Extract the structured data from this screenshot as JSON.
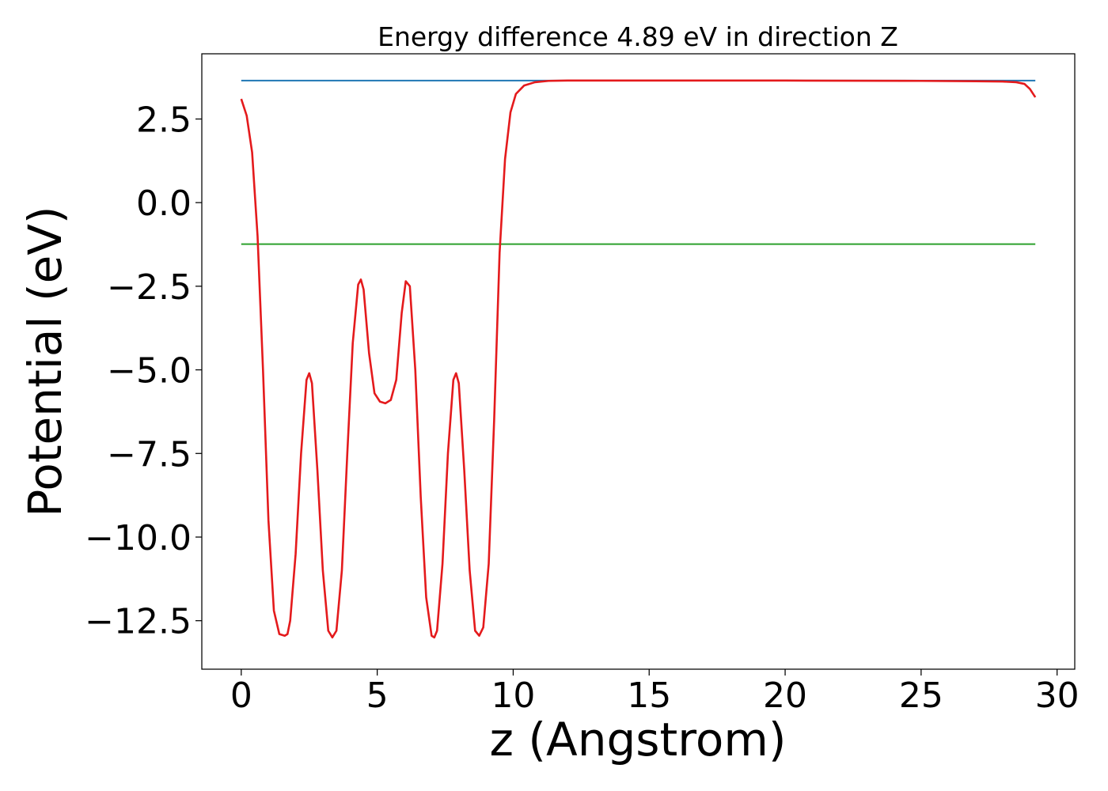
{
  "chart_data": {
    "type": "line",
    "title": "Energy difference 4.89 eV in direction Z",
    "xlabel": "z (Angstrom)",
    "ylabel": "Potential (eV)",
    "xlim": [
      -1.45,
      30.65
    ],
    "ylim": [
      -13.95,
      4.45
    ],
    "xticks": [
      0,
      5,
      10,
      15,
      20,
      25,
      30
    ],
    "xtick_labels": [
      "0",
      "5",
      "10",
      "15",
      "20",
      "25",
      "30"
    ],
    "yticks": [
      2.5,
      0.0,
      -2.5,
      -5.0,
      -7.5,
      -10.0,
      -12.5
    ],
    "ytick_labels": [
      "2.5",
      "0.0",
      "−2.5",
      "−5.0",
      "−7.5",
      "−10.0",
      "−12.5"
    ],
    "grid": false,
    "series": [
      {
        "color": "#1f77b4",
        "x": [
          0,
          29.2
        ],
        "y": [
          3.65,
          3.65
        ]
      },
      {
        "color": "#2ca02c",
        "x": [
          0,
          29.2
        ],
        "y": [
          -1.24,
          -1.24
        ]
      },
      {
        "color": "#e41a1c",
        "x": [
          0.0,
          0.2,
          0.4,
          0.6,
          0.8,
          1.0,
          1.2,
          1.4,
          1.6,
          1.7,
          1.8,
          2.0,
          2.2,
          2.4,
          2.5,
          2.6,
          2.8,
          3.0,
          3.2,
          3.35,
          3.5,
          3.7,
          3.9,
          4.1,
          4.3,
          4.4,
          4.5,
          4.7,
          4.9,
          5.1,
          5.3,
          5.5,
          5.7,
          5.9,
          6.05,
          6.2,
          6.4,
          6.6,
          6.8,
          7.0,
          7.1,
          7.2,
          7.4,
          7.6,
          7.8,
          7.9,
          8.0,
          8.2,
          8.4,
          8.6,
          8.75,
          8.9,
          9.1,
          9.3,
          9.5,
          9.7,
          9.9,
          10.1,
          10.4,
          10.8,
          11.3,
          12.0,
          13.0,
          15.0,
          20.0,
          25.0,
          27.0,
          28.0,
          28.5,
          28.8,
          29.0,
          29.2
        ],
        "y": [
          3.1,
          2.6,
          1.5,
          -1.0,
          -5.0,
          -9.5,
          -12.2,
          -12.9,
          -12.95,
          -12.9,
          -12.5,
          -10.5,
          -7.5,
          -5.3,
          -5.1,
          -5.4,
          -8.0,
          -11.0,
          -12.8,
          -13.0,
          -12.8,
          -11.0,
          -7.5,
          -4.2,
          -2.45,
          -2.3,
          -2.6,
          -4.5,
          -5.7,
          -5.95,
          -6.0,
          -5.9,
          -5.3,
          -3.3,
          -2.35,
          -2.5,
          -5.0,
          -8.8,
          -11.8,
          -12.95,
          -13.0,
          -12.8,
          -10.8,
          -7.5,
          -5.3,
          -5.1,
          -5.4,
          -8.0,
          -11.0,
          -12.8,
          -12.95,
          -12.7,
          -10.8,
          -6.5,
          -1.5,
          1.3,
          2.7,
          3.25,
          3.5,
          3.6,
          3.64,
          3.65,
          3.65,
          3.65,
          3.65,
          3.64,
          3.63,
          3.62,
          3.6,
          3.55,
          3.4,
          3.15
        ]
      }
    ]
  }
}
